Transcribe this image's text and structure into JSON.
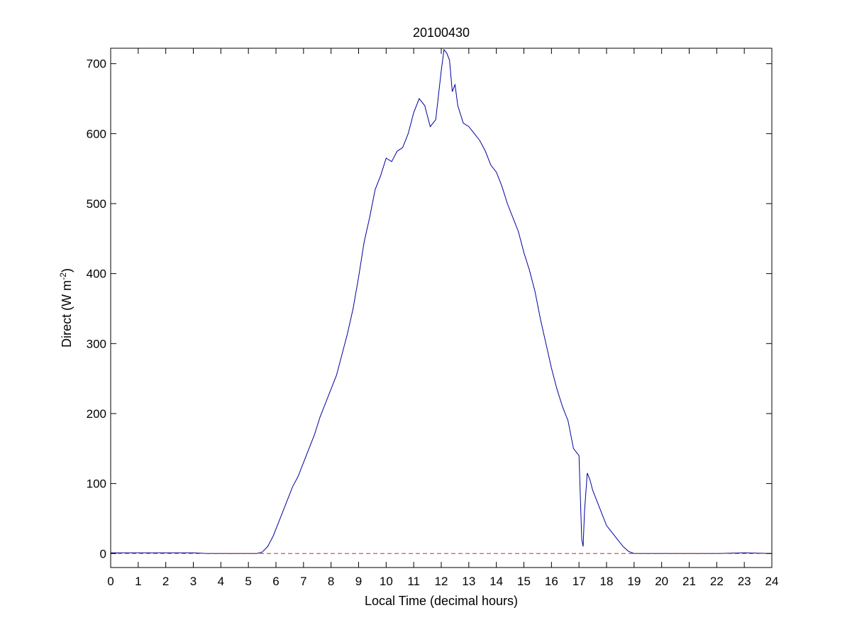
{
  "chart_data": {
    "type": "line",
    "title": "20100430",
    "xlabel": "Local Time (decimal hours)",
    "ylabel": {
      "main": "Direct (W m",
      "superscript": "-2",
      "close": ")"
    },
    "xlim": [
      0,
      24
    ],
    "ylim": [
      -20,
      722
    ],
    "xticks": [
      0,
      1,
      2,
      3,
      4,
      5,
      6,
      7,
      8,
      9,
      10,
      11,
      12,
      13,
      14,
      15,
      16,
      17,
      18,
      19,
      20,
      21,
      22,
      23,
      24
    ],
    "yticks": [
      0,
      100,
      200,
      300,
      400,
      500,
      600,
      700
    ],
    "grid": false,
    "colors": {
      "series": "#0000a0",
      "baseline": "#e02020",
      "axes": "#000000"
    },
    "series": [
      {
        "style": "solid",
        "x": [
          0,
          0.5,
          1,
          1.5,
          2,
          2.5,
          3,
          3.5,
          4,
          4.5,
          5,
          5.3,
          5.5,
          5.7,
          5.9,
          6.0,
          6.2,
          6.4,
          6.6,
          6.8,
          7.0,
          7.2,
          7.4,
          7.6,
          7.8,
          8.0,
          8.2,
          8.4,
          8.6,
          8.8,
          9.0,
          9.2,
          9.4,
          9.6,
          9.8,
          10.0,
          10.2,
          10.4,
          10.6,
          10.8,
          11.0,
          11.2,
          11.4,
          11.5,
          11.6,
          11.8,
          12.0,
          12.1,
          12.2,
          12.3,
          12.4,
          12.5,
          12.6,
          12.8,
          13.0,
          13.2,
          13.4,
          13.6,
          13.8,
          14.0,
          14.2,
          14.4,
          14.6,
          14.8,
          15.0,
          15.2,
          15.4,
          15.6,
          15.8,
          16.0,
          16.2,
          16.4,
          16.6,
          16.8,
          17.0,
          17.05,
          17.1,
          17.15,
          17.2,
          17.3,
          17.4,
          17.5,
          17.6,
          17.8,
          18.0,
          18.2,
          18.4,
          18.6,
          18.8,
          19.0,
          20,
          21,
          22,
          23,
          24
        ],
        "values": [
          1,
          1,
          1,
          1,
          1,
          1,
          1,
          0,
          0,
          0,
          0,
          0,
          2,
          10,
          25,
          35,
          55,
          75,
          95,
          110,
          130,
          150,
          170,
          195,
          215,
          235,
          255,
          285,
          315,
          350,
          395,
          445,
          480,
          520,
          540,
          565,
          560,
          575,
          580,
          600,
          630,
          650,
          640,
          625,
          610,
          620,
          690,
          720,
          715,
          705,
          660,
          670,
          640,
          615,
          610,
          600,
          590,
          575,
          555,
          545,
          525,
          500,
          480,
          460,
          430,
          405,
          375,
          335,
          300,
          265,
          235,
          210,
          190,
          150,
          140,
          80,
          20,
          10,
          60,
          115,
          105,
          90,
          80,
          60,
          40,
          30,
          20,
          10,
          3,
          0,
          0,
          0,
          0,
          1,
          0
        ]
      },
      {
        "style": "dashed",
        "x": [
          0,
          24
        ],
        "values": [
          0,
          0
        ]
      }
    ]
  }
}
